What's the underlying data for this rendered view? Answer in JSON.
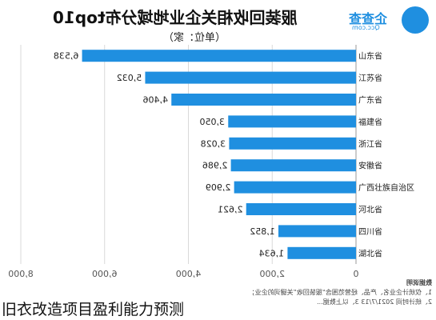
{
  "header": {
    "title": "服装回收相关企业地域分布top10",
    "unit": "（单位：家）",
    "logo_text": "企查查",
    "logo_sub": "Qcc.com"
  },
  "footer": {
    "note_title": "数据说明",
    "note_lines": [
      "1、仅统计企业名、产品、经营范围含“服装回收”关键词的企业；",
      "2、统计时间 2021/7/13  3、以上数据..."
    ]
  },
  "caption": "旧衣改造项目盈利能力预测",
  "chart_data": {
    "type": "bar",
    "orientation": "horizontal",
    "x_reversed": true,
    "categories": [
      "山东省",
      "江苏省",
      "广东省",
      "福建省",
      "浙江省",
      "安徽省",
      "广西壮族自治区",
      "河北省",
      "四川省",
      "湖北省"
    ],
    "values": [
      6538,
      5032,
      4406,
      3050,
      3028,
      2986,
      2909,
      2621,
      1852,
      1634
    ],
    "value_labels": [
      "6,538",
      "5,032",
      "4,406",
      "3,050",
      "3,028",
      "2,986",
      "2,909",
      "2,621",
      "1,852",
      "1,634"
    ],
    "xlim": [
      0,
      8000
    ],
    "x_ticks": [
      "0",
      "2,000",
      "4,000",
      "6,000",
      "8,000"
    ],
    "bar_color": "#1f8fe0",
    "grid": true
  }
}
